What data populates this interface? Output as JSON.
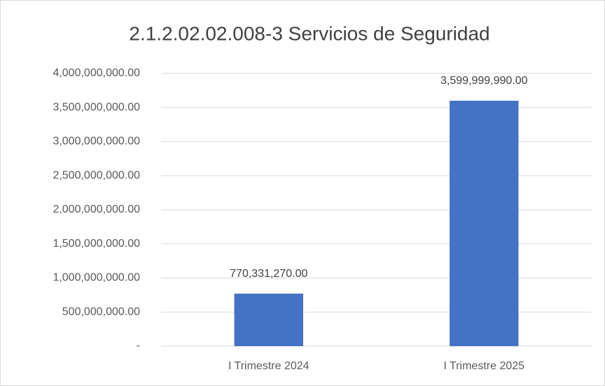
{
  "chart_data": {
    "type": "bar",
    "title": "2.1.2.02.02.008-3 Servicios de Seguridad",
    "categories": [
      "I Trimestre 2024",
      "I Trimestre 2025"
    ],
    "values": [
      770331270,
      3599999990
    ],
    "value_labels": [
      "770,331,270.00",
      "3,599,999,990.00"
    ],
    "color": "#4472c4",
    "ylim": [
      0,
      4000000000
    ],
    "yticks": [
      {
        "value": 0,
        "label": "-"
      },
      {
        "value": 500000000,
        "label": "500,000,000.00"
      },
      {
        "value": 1000000000,
        "label": "1,000,000,000.00"
      },
      {
        "value": 1500000000,
        "label": "1,500,000,000.00"
      },
      {
        "value": 2000000000,
        "label": "2,000,000,000.00"
      },
      {
        "value": 2500000000,
        "label": "2,500,000,000.00"
      },
      {
        "value": 3000000000,
        "label": "3,000,000,000.00"
      },
      {
        "value": 3500000000,
        "label": "3,500,000,000.00"
      },
      {
        "value": 4000000000,
        "label": "4,000,000,000.00"
      }
    ],
    "grid": true
  }
}
